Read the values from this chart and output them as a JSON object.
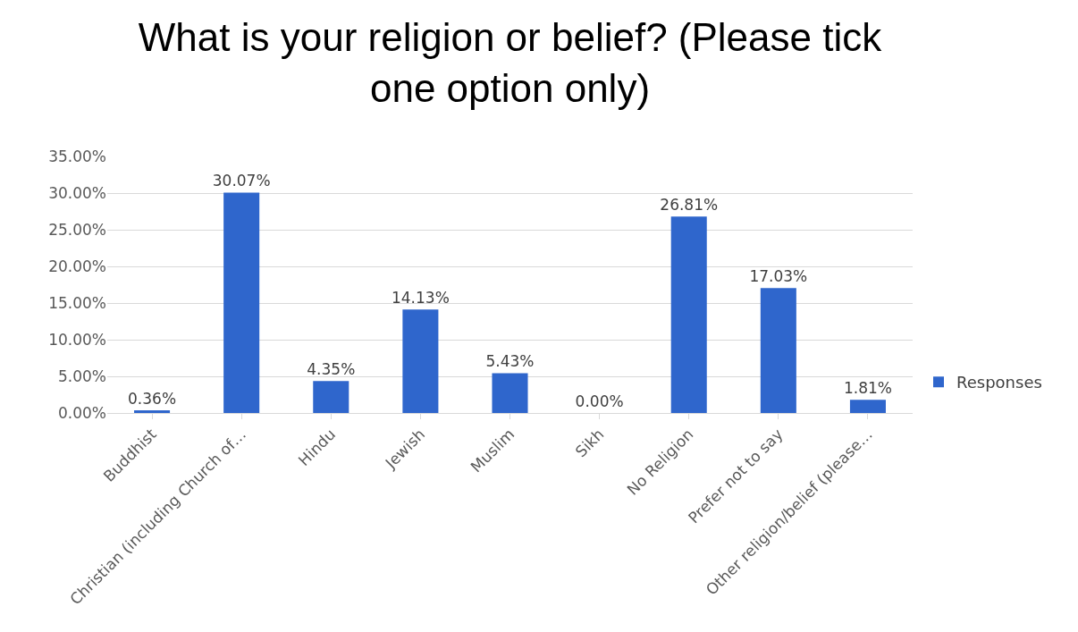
{
  "chart_data": {
    "type": "bar",
    "title": "What is your religion or belief? (Please tick one option only)",
    "categories": [
      "Buddhist",
      "Christian (including Church of…",
      "Hindu",
      "Jewish",
      "Muslim",
      "Sikh",
      "No Religion",
      "Prefer not to say",
      "Other religion/belief (please…"
    ],
    "series": [
      {
        "name": "Responses",
        "color": "#2f66cc",
        "values": [
          0.36,
          30.07,
          4.35,
          14.13,
          5.43,
          0,
          26.81,
          17.03,
          1.81
        ],
        "value_labels": [
          "0.36%",
          "30.07%",
          "4.35%",
          "14.13%",
          "5.43%",
          "0.00%",
          "26.81%",
          "17.03%",
          "1.81%"
        ]
      }
    ],
    "ylim": [
      0,
      35
    ],
    "yticks": [
      {
        "value": 0,
        "label": "0.00%"
      },
      {
        "value": 5,
        "label": "5.00%"
      },
      {
        "value": 10,
        "label": "10.00%"
      },
      {
        "value": 15,
        "label": "15.00%"
      },
      {
        "value": 20,
        "label": "20.00%"
      },
      {
        "value": 25,
        "label": "25.00%"
      },
      {
        "value": 30,
        "label": "30.00%"
      },
      {
        "value": 35,
        "label": "35.00%"
      }
    ],
    "grid": "y",
    "legend": "right"
  }
}
